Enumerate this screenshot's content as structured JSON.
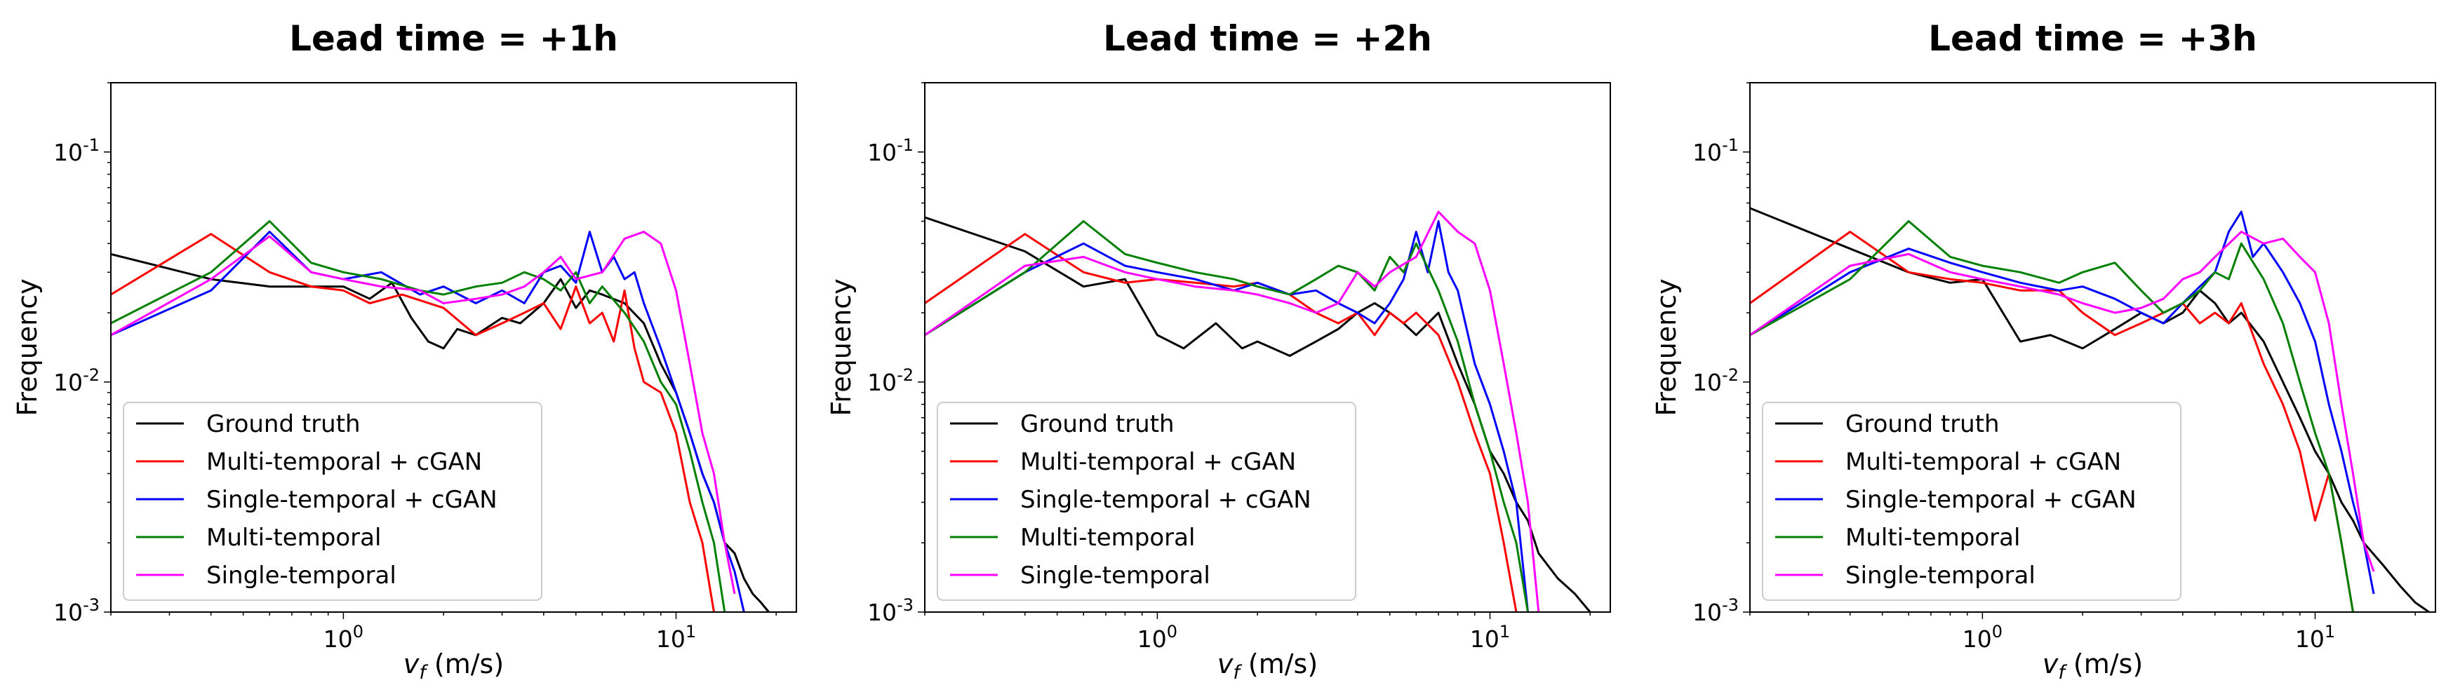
{
  "chart_data": [
    {
      "type": "line",
      "title": "Lead time = +1h",
      "xlabel_var": "v",
      "xlabel_sub": "f",
      "xlabel_unit": "(m/s)",
      "ylabel": "Frequency",
      "xscale": "log",
      "yscale": "log",
      "xlim": [
        0.2,
        23
      ],
      "ylim": [
        0.001,
        0.2
      ],
      "xticks": [
        {
          "base": "10",
          "exp": "0",
          "value": 1
        },
        {
          "base": "10",
          "exp": "1",
          "value": 10
        }
      ],
      "yticks": [
        {
          "base": "10",
          "exp": "-1",
          "value": 0.1
        },
        {
          "base": "10",
          "exp": "-2",
          "value": 0.01
        },
        {
          "base": "10",
          "exp": "-3",
          "value": 0.001
        }
      ],
      "legend_position": "lower-left",
      "series": [
        {
          "name": "Ground truth",
          "color": "#000000",
          "x": [
            0.2,
            0.4,
            0.6,
            1.0,
            1.2,
            1.4,
            1.6,
            1.8,
            2.0,
            2.2,
            2.5,
            3.0,
            3.4,
            4.0,
            4.5,
            5.0,
            5.5,
            6.0,
            7.0,
            8.0,
            9.0,
            10.0,
            11.0,
            12.0,
            13.0,
            14.0,
            15.0,
            16.0,
            17.0,
            18.0,
            19.0
          ],
          "y": [
            0.036,
            0.028,
            0.026,
            0.026,
            0.023,
            0.027,
            0.019,
            0.015,
            0.014,
            0.017,
            0.016,
            0.019,
            0.018,
            0.022,
            0.028,
            0.021,
            0.025,
            0.024,
            0.022,
            0.018,
            0.012,
            0.009,
            0.006,
            0.004,
            0.003,
            0.002,
            0.0018,
            0.0014,
            0.0012,
            0.0011,
            0.001
          ]
        },
        {
          "name": "Multi-temporal + cGAN",
          "color": "#ff0000",
          "x": [
            0.2,
            0.4,
            0.6,
            0.8,
            1.0,
            1.2,
            1.5,
            2.0,
            2.5,
            3.0,
            3.5,
            4.0,
            4.5,
            5.0,
            5.5,
            6.0,
            6.5,
            7.0,
            7.5,
            8.0,
            9.0,
            10.0,
            11.0,
            12.0,
            13.0
          ],
          "y": [
            0.024,
            0.044,
            0.03,
            0.026,
            0.025,
            0.022,
            0.024,
            0.021,
            0.016,
            0.018,
            0.02,
            0.022,
            0.017,
            0.026,
            0.018,
            0.02,
            0.015,
            0.025,
            0.014,
            0.01,
            0.009,
            0.006,
            0.003,
            0.002,
            0.001
          ]
        },
        {
          "name": "Single-temporal + cGAN",
          "color": "#0000ff",
          "x": [
            0.2,
            0.4,
            0.6,
            0.8,
            1.0,
            1.3,
            1.7,
            2.0,
            2.5,
            3.0,
            3.5,
            4.0,
            4.5,
            5.0,
            5.5,
            6.0,
            6.5,
            7.0,
            7.5,
            8.0,
            9.0,
            10.0,
            11.0,
            12.0,
            13.0,
            14.0,
            15.0,
            16.0
          ],
          "y": [
            0.016,
            0.025,
            0.045,
            0.03,
            0.028,
            0.03,
            0.024,
            0.026,
            0.022,
            0.025,
            0.022,
            0.03,
            0.032,
            0.027,
            0.045,
            0.03,
            0.035,
            0.028,
            0.03,
            0.022,
            0.014,
            0.009,
            0.006,
            0.004,
            0.003,
            0.002,
            0.0015,
            0.001
          ]
        },
        {
          "name": "Multi-temporal",
          "color": "#008000",
          "x": [
            0.2,
            0.4,
            0.6,
            0.8,
            1.0,
            1.3,
            1.7,
            2.0,
            2.5,
            3.0,
            3.5,
            4.0,
            4.5,
            5.0,
            5.5,
            6.0,
            7.0,
            8.0,
            9.0,
            10.0,
            11.0,
            12.0,
            13.0,
            14.0
          ],
          "y": [
            0.018,
            0.03,
            0.05,
            0.033,
            0.03,
            0.028,
            0.025,
            0.024,
            0.026,
            0.027,
            0.03,
            0.028,
            0.025,
            0.03,
            0.022,
            0.026,
            0.02,
            0.015,
            0.01,
            0.008,
            0.005,
            0.003,
            0.002,
            0.001
          ]
        },
        {
          "name": "Single-temporal",
          "color": "#ff00ff",
          "x": [
            0.2,
            0.4,
            0.6,
            0.8,
            1.0,
            1.3,
            1.7,
            2.0,
            2.5,
            3.0,
            3.5,
            4.0,
            4.5,
            5.0,
            6.0,
            7.0,
            8.0,
            9.0,
            10.0,
            11.0,
            12.0,
            13.0,
            14.0,
            15.0
          ],
          "y": [
            0.016,
            0.028,
            0.043,
            0.03,
            0.028,
            0.026,
            0.025,
            0.022,
            0.023,
            0.024,
            0.026,
            0.03,
            0.035,
            0.028,
            0.03,
            0.042,
            0.045,
            0.04,
            0.025,
            0.012,
            0.006,
            0.004,
            0.002,
            0.0012
          ]
        }
      ]
    },
    {
      "type": "line",
      "title": "Lead time = +2h",
      "xlabel_var": "v",
      "xlabel_sub": "f",
      "xlabel_unit": "(m/s)",
      "ylabel": "Frequency",
      "xscale": "log",
      "yscale": "log",
      "xlim": [
        0.2,
        23
      ],
      "ylim": [
        0.001,
        0.2
      ],
      "xticks": [
        {
          "base": "10",
          "exp": "0",
          "value": 1
        },
        {
          "base": "10",
          "exp": "1",
          "value": 10
        }
      ],
      "yticks": [
        {
          "base": "10",
          "exp": "-1",
          "value": 0.1
        },
        {
          "base": "10",
          "exp": "-2",
          "value": 0.01
        },
        {
          "base": "10",
          "exp": "-3",
          "value": 0.001
        }
      ],
      "legend_position": "lower-left",
      "series": [
        {
          "name": "Ground truth",
          "color": "#000000",
          "x": [
            0.2,
            0.4,
            0.6,
            0.8,
            1.0,
            1.2,
            1.5,
            1.8,
            2.0,
            2.5,
            3.0,
            3.5,
            4.0,
            4.5,
            5.0,
            5.5,
            6.0,
            7.0,
            8.0,
            9.0,
            10.0,
            11.0,
            12.0,
            13.0,
            14.0,
            16.0,
            18.0,
            20.0
          ],
          "y": [
            0.052,
            0.037,
            0.026,
            0.028,
            0.016,
            0.014,
            0.018,
            0.014,
            0.015,
            0.013,
            0.015,
            0.017,
            0.02,
            0.022,
            0.02,
            0.018,
            0.016,
            0.02,
            0.012,
            0.008,
            0.005,
            0.004,
            0.003,
            0.0025,
            0.0018,
            0.0014,
            0.0012,
            0.001
          ]
        },
        {
          "name": "Multi-temporal + cGAN",
          "color": "#ff0000",
          "x": [
            0.2,
            0.4,
            0.6,
            0.8,
            1.0,
            1.3,
            1.7,
            2.0,
            2.5,
            3.0,
            3.5,
            4.0,
            4.5,
            5.0,
            5.5,
            6.0,
            7.0,
            8.0,
            9.0,
            10.0,
            11.0,
            12.0
          ],
          "y": [
            0.022,
            0.044,
            0.03,
            0.027,
            0.028,
            0.027,
            0.026,
            0.027,
            0.024,
            0.02,
            0.018,
            0.02,
            0.016,
            0.02,
            0.018,
            0.02,
            0.016,
            0.01,
            0.006,
            0.004,
            0.002,
            0.001
          ]
        },
        {
          "name": "Single-temporal + cGAN",
          "color": "#0000ff",
          "x": [
            0.2,
            0.4,
            0.6,
            0.8,
            1.0,
            1.3,
            1.7,
            2.0,
            2.5,
            3.0,
            3.5,
            4.0,
            4.5,
            5.0,
            5.5,
            6.0,
            6.5,
            7.0,
            7.5,
            8.0,
            9.0,
            10.0,
            11.0,
            12.0,
            13.0
          ],
          "y": [
            0.016,
            0.03,
            0.04,
            0.032,
            0.03,
            0.028,
            0.025,
            0.027,
            0.024,
            0.025,
            0.022,
            0.02,
            0.018,
            0.022,
            0.028,
            0.045,
            0.03,
            0.05,
            0.03,
            0.025,
            0.012,
            0.008,
            0.005,
            0.003,
            0.001
          ]
        },
        {
          "name": "Multi-temporal",
          "color": "#008000",
          "x": [
            0.2,
            0.4,
            0.6,
            0.8,
            1.0,
            1.3,
            1.7,
            2.0,
            2.5,
            3.0,
            3.5,
            4.0,
            4.5,
            5.0,
            5.5,
            6.0,
            7.0,
            8.0,
            9.0,
            10.0,
            11.0,
            12.0,
            13.0
          ],
          "y": [
            0.016,
            0.03,
            0.05,
            0.036,
            0.033,
            0.03,
            0.028,
            0.026,
            0.024,
            0.028,
            0.032,
            0.03,
            0.025,
            0.035,
            0.03,
            0.04,
            0.025,
            0.015,
            0.008,
            0.005,
            0.003,
            0.002,
            0.001
          ]
        },
        {
          "name": "Single-temporal",
          "color": "#ff00ff",
          "x": [
            0.2,
            0.4,
            0.6,
            0.8,
            1.0,
            1.3,
            1.7,
            2.0,
            2.5,
            3.0,
            3.5,
            4.0,
            4.5,
            5.0,
            6.0,
            7.0,
            8.0,
            9.0,
            10.0,
            11.0,
            12.0,
            13.0,
            14.0
          ],
          "y": [
            0.016,
            0.032,
            0.035,
            0.03,
            0.028,
            0.026,
            0.025,
            0.024,
            0.022,
            0.02,
            0.022,
            0.03,
            0.026,
            0.03,
            0.035,
            0.055,
            0.045,
            0.04,
            0.025,
            0.012,
            0.006,
            0.003,
            0.001
          ]
        }
      ]
    },
    {
      "type": "line",
      "title": "Lead time = +3h",
      "xlabel_var": "v",
      "xlabel_sub": "f",
      "xlabel_unit": "(m/s)",
      "ylabel": "Frequency",
      "xscale": "log",
      "yscale": "log",
      "xlim": [
        0.2,
        23
      ],
      "ylim": [
        0.001,
        0.2
      ],
      "xticks": [
        {
          "base": "10",
          "exp": "0",
          "value": 1
        },
        {
          "base": "10",
          "exp": "1",
          "value": 10
        }
      ],
      "yticks": [
        {
          "base": "10",
          "exp": "-1",
          "value": 0.1
        },
        {
          "base": "10",
          "exp": "-2",
          "value": 0.01
        },
        {
          "base": "10",
          "exp": "-3",
          "value": 0.001
        }
      ],
      "legend_position": "lower-left",
      "series": [
        {
          "name": "Ground truth",
          "color": "#000000",
          "x": [
            0.2,
            0.4,
            0.6,
            0.8,
            1.0,
            1.3,
            1.6,
            2.0,
            2.5,
            3.0,
            3.5,
            4.0,
            4.5,
            5.0,
            5.5,
            6.0,
            7.0,
            8.0,
            9.0,
            10.0,
            11.0,
            12.0,
            13.0,
            14.0,
            16.0,
            18.0,
            20.0,
            22.0
          ],
          "y": [
            0.057,
            0.038,
            0.03,
            0.027,
            0.028,
            0.015,
            0.016,
            0.014,
            0.017,
            0.02,
            0.018,
            0.02,
            0.025,
            0.022,
            0.018,
            0.02,
            0.015,
            0.01,
            0.007,
            0.005,
            0.004,
            0.003,
            0.0025,
            0.002,
            0.0016,
            0.0013,
            0.0011,
            0.001
          ]
        },
        {
          "name": "Multi-temporal + cGAN",
          "color": "#ff0000",
          "x": [
            0.2,
            0.4,
            0.6,
            0.8,
            1.0,
            1.3,
            1.7,
            2.0,
            2.5,
            3.0,
            3.5,
            4.0,
            4.5,
            5.0,
            5.5,
            6.0,
            7.0,
            8.0,
            9.0,
            10.0,
            11.0,
            12.0,
            13.0
          ],
          "y": [
            0.022,
            0.045,
            0.03,
            0.028,
            0.027,
            0.025,
            0.025,
            0.02,
            0.016,
            0.018,
            0.02,
            0.022,
            0.018,
            0.02,
            0.018,
            0.022,
            0.012,
            0.008,
            0.005,
            0.0025,
            0.004,
            0.002,
            0.001
          ]
        },
        {
          "name": "Single-temporal + cGAN",
          "color": "#0000ff",
          "x": [
            0.2,
            0.4,
            0.6,
            0.8,
            1.0,
            1.3,
            1.7,
            2.0,
            2.5,
            3.0,
            3.5,
            4.0,
            4.5,
            5.0,
            5.5,
            6.0,
            6.5,
            7.0,
            8.0,
            9.0,
            10.0,
            11.0,
            12.0,
            13.0,
            14.0,
            15.0
          ],
          "y": [
            0.016,
            0.03,
            0.038,
            0.033,
            0.03,
            0.027,
            0.025,
            0.026,
            0.023,
            0.02,
            0.018,
            0.022,
            0.026,
            0.03,
            0.045,
            0.055,
            0.035,
            0.04,
            0.03,
            0.022,
            0.015,
            0.008,
            0.005,
            0.003,
            0.002,
            0.0012
          ]
        },
        {
          "name": "Multi-temporal",
          "color": "#008000",
          "x": [
            0.2,
            0.4,
            0.6,
            0.8,
            1.0,
            1.3,
            1.7,
            2.0,
            2.5,
            3.0,
            3.5,
            4.0,
            4.5,
            5.0,
            5.5,
            6.0,
            7.0,
            8.0,
            9.0,
            10.0,
            11.0,
            12.0,
            13.0
          ],
          "y": [
            0.016,
            0.028,
            0.05,
            0.035,
            0.032,
            0.03,
            0.027,
            0.03,
            0.033,
            0.025,
            0.02,
            0.022,
            0.025,
            0.03,
            0.028,
            0.04,
            0.028,
            0.018,
            0.01,
            0.006,
            0.004,
            0.002,
            0.001
          ]
        },
        {
          "name": "Single-temporal",
          "color": "#ff00ff",
          "x": [
            0.2,
            0.4,
            0.6,
            0.8,
            1.0,
            1.3,
            1.7,
            2.0,
            2.5,
            3.0,
            3.5,
            4.0,
            4.5,
            5.0,
            6.0,
            7.0,
            8.0,
            9.0,
            10.0,
            11.0,
            12.0,
            13.0,
            14.0,
            15.0
          ],
          "y": [
            0.016,
            0.032,
            0.036,
            0.03,
            0.028,
            0.026,
            0.024,
            0.022,
            0.02,
            0.021,
            0.023,
            0.028,
            0.03,
            0.035,
            0.045,
            0.04,
            0.042,
            0.035,
            0.03,
            0.018,
            0.008,
            0.004,
            0.002,
            0.0015
          ]
        }
      ]
    }
  ]
}
